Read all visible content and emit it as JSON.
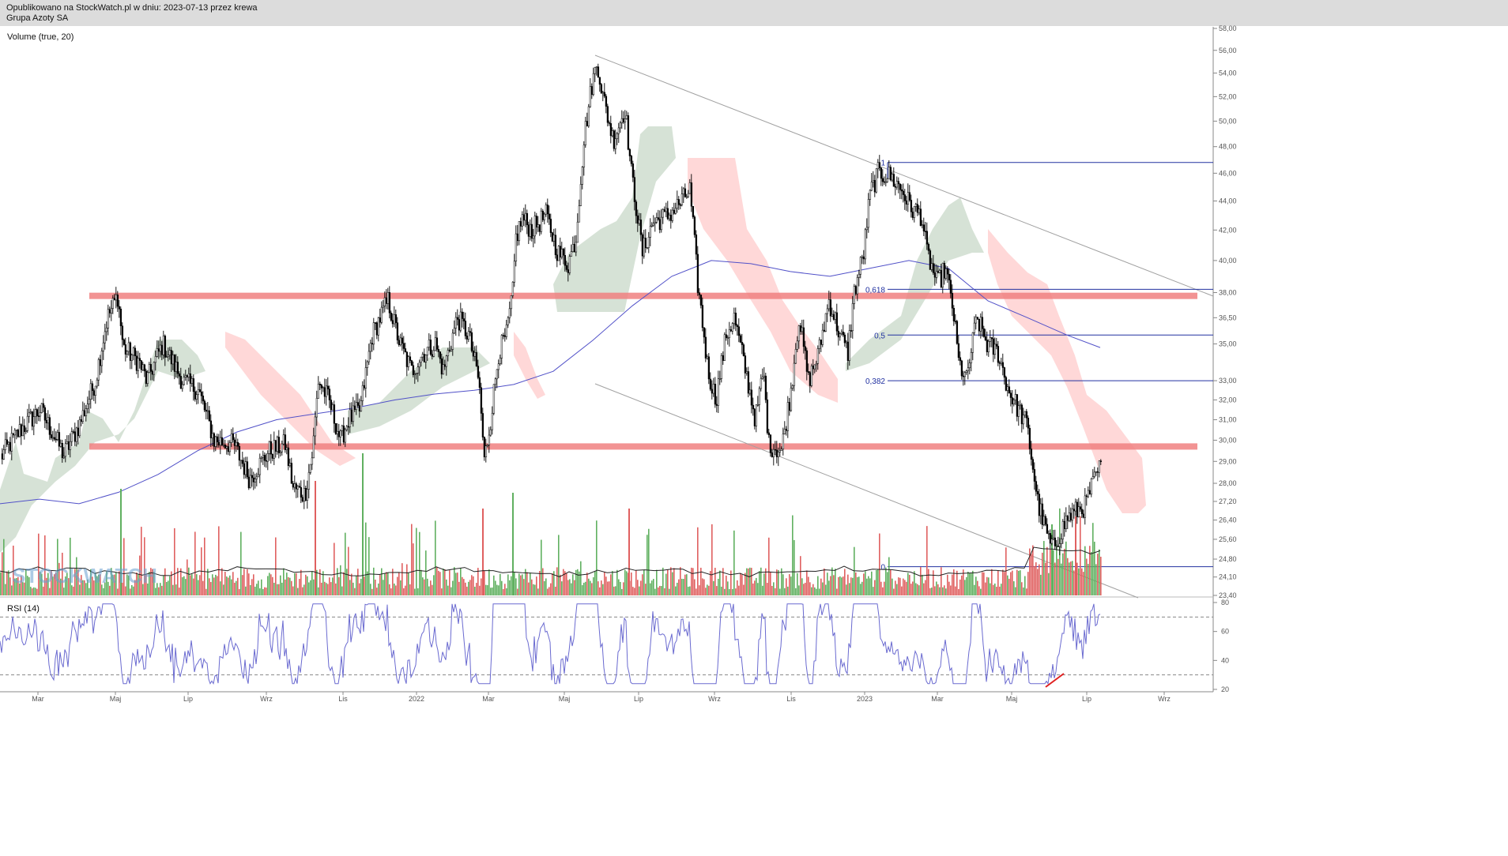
{
  "header": {
    "published": "Opublikowano na StockWatch.pl w dniu: 2023-07-13 przez krewa",
    "instrument": "Grupa Azoty SA"
  },
  "volume_label": "Volume (true, 20)",
  "rsi_label": "RSI (14)",
  "watermark": "STOCKWATCH",
  "colors": {
    "candle": "#000000",
    "sma": "#5050c8",
    "cloud_bull": "#c8d8c8",
    "cloud_bear": "#ffc8c8",
    "support_band": "#f08080",
    "fib_line": "#2030a0",
    "trend_line": "#a0a0a0",
    "vol_up": "#60b060",
    "vol_down": "#e06060",
    "rsi": "#6a6ad0",
    "divergence": "#e02020"
  },
  "chart_data": [
    {
      "type": "candlestick",
      "title": "",
      "subtitle": "",
      "x_ticks": [
        "Mar",
        "Maj",
        "Lip",
        "Wrz",
        "Lis",
        "2022",
        "Mar",
        "Maj",
        "Lip",
        "Wrz",
        "Lis",
        "2023",
        "Mar",
        "Maj",
        "Lip",
        "Wrz"
      ],
      "y_ticks": [
        "58,00",
        "56,00",
        "54,00",
        "52,00",
        "50,00",
        "48,00",
        "46,00",
        "44,00",
        "42,00",
        "40,00",
        "38,00",
        "36,50",
        "35,00",
        "33,00",
        "32,00",
        "31,00",
        "30,00",
        "29,00",
        "28,00",
        "27,20",
        "26,40",
        "25,60",
        "24,80",
        "24,10",
        "23,40"
      ],
      "y_scale": "log",
      "ylim": [
        23.4,
        58.0
      ],
      "price_path": [
        [
          0,
          29.2
        ],
        [
          25,
          30.5
        ],
        [
          50,
          31.5
        ],
        [
          80,
          29.3
        ],
        [
          100,
          30.8
        ],
        [
          120,
          33.0
        ],
        [
          135,
          36.5
        ],
        [
          148,
          37.8
        ],
        [
          155,
          34.8
        ],
        [
          175,
          34.0
        ],
        [
          185,
          33.0
        ],
        [
          205,
          35.0
        ],
        [
          230,
          33.0
        ],
        [
          250,
          32.5
        ],
        [
          270,
          30.0
        ],
        [
          295,
          29.8
        ],
        [
          315,
          28.2
        ],
        [
          340,
          29.5
        ],
        [
          360,
          29.8
        ],
        [
          370,
          27.8
        ],
        [
          385,
          27.5
        ],
        [
          395,
          29.5
        ],
        [
          402,
          33.0
        ],
        [
          415,
          32.0
        ],
        [
          430,
          30.0
        ],
        [
          440,
          31.0
        ],
        [
          455,
          31.5
        ],
        [
          470,
          35.5
        ],
        [
          490,
          37.5
        ],
        [
          505,
          35.0
        ],
        [
          520,
          33.5
        ],
        [
          535,
          34.5
        ],
        [
          550,
          35.0
        ],
        [
          560,
          33.5
        ],
        [
          578,
          36.5
        ],
        [
          592,
          35.5
        ],
        [
          605,
          33.0
        ],
        [
          612,
          29.0
        ],
        [
          620,
          31.0
        ],
        [
          630,
          34.5
        ],
        [
          640,
          35.5
        ],
        [
          648,
          38.0
        ],
        [
          652,
          41.5
        ],
        [
          660,
          42.8
        ],
        [
          672,
          42.0
        ],
        [
          690,
          43.0
        ],
        [
          705,
          40.5
        ],
        [
          718,
          39.8
        ],
        [
          728,
          41.5
        ],
        [
          738,
          48.5
        ],
        [
          748,
          53.0
        ],
        [
          755,
          55.0
        ],
        [
          762,
          52.0
        ],
        [
          775,
          48.5
        ],
        [
          790,
          51.0
        ],
        [
          798,
          46.0
        ],
        [
          812,
          40.5
        ],
        [
          825,
          42.5
        ],
        [
          845,
          43.0
        ],
        [
          862,
          44.0
        ],
        [
          872,
          44.8
        ],
        [
          882,
          38.5
        ],
        [
          895,
          33.5
        ],
        [
          905,
          32.0
        ],
        [
          918,
          35.5
        ],
        [
          928,
          36.5
        ],
        [
          945,
          33.0
        ],
        [
          955,
          31.0
        ],
        [
          965,
          33.5
        ],
        [
          972,
          29.8
        ],
        [
          988,
          29.5
        ],
        [
          1000,
          32.5
        ],
        [
          1010,
          36.5
        ],
        [
          1022,
          33.0
        ],
        [
          1035,
          34.5
        ],
        [
          1048,
          37.5
        ],
        [
          1062,
          35.5
        ],
        [
          1072,
          34.5
        ],
        [
          1080,
          38.0
        ],
        [
          1092,
          40.5
        ],
        [
          1100,
          44.5
        ],
        [
          1110,
          46.0
        ],
        [
          1125,
          45.8
        ],
        [
          1140,
          44.8
        ],
        [
          1152,
          43.5
        ],
        [
          1165,
          43.0
        ],
        [
          1172,
          40.5
        ],
        [
          1185,
          38.5
        ],
        [
          1195,
          39.5
        ],
        [
          1205,
          37.0
        ],
        [
          1212,
          34.0
        ],
        [
          1222,
          33.0
        ],
        [
          1235,
          36.5
        ],
        [
          1248,
          35.0
        ],
        [
          1262,
          34.5
        ],
        [
          1275,
          32.5
        ],
        [
          1288,
          31.5
        ],
        [
          1298,
          30.8
        ],
        [
          1305,
          29.0
        ],
        [
          1312,
          27.2
        ],
        [
          1320,
          26.2
        ],
        [
          1330,
          25.2
        ],
        [
          1340,
          25.8
        ],
        [
          1350,
          26.5
        ],
        [
          1362,
          26.8
        ],
        [
          1372,
          27.0
        ],
        [
          1380,
          27.8
        ],
        [
          1392,
          28.8
        ]
      ],
      "sma_path": [
        [
          0,
          27.1
        ],
        [
          50,
          27.3
        ],
        [
          100,
          27.1
        ],
        [
          150,
          27.6
        ],
        [
          200,
          28.4
        ],
        [
          250,
          29.5
        ],
        [
          300,
          30.4
        ],
        [
          350,
          31.0
        ],
        [
          400,
          31.3
        ],
        [
          450,
          31.6
        ],
        [
          500,
          32.0
        ],
        [
          550,
          32.3
        ],
        [
          600,
          32.5
        ],
        [
          650,
          32.8
        ],
        [
          700,
          33.5
        ],
        [
          750,
          35.2
        ],
        [
          800,
          37.2
        ],
        [
          850,
          39.0
        ],
        [
          900,
          40.0
        ],
        [
          950,
          39.8
        ],
        [
          1000,
          39.3
        ],
        [
          1050,
          39.0
        ],
        [
          1100,
          39.5
        ],
        [
          1150,
          40.0
        ],
        [
          1200,
          39.5
        ],
        [
          1250,
          37.5
        ],
        [
          1300,
          36.5
        ],
        [
          1350,
          35.5
        ],
        [
          1392,
          34.8
        ]
      ],
      "support_bands": [
        37.8,
        29.7
      ],
      "fibonacci": [
        {
          "label": "1",
          "price": 46.8
        },
        {
          "label": "0,618",
          "price": 38.2
        },
        {
          "label": "0,5",
          "price": 35.5
        },
        {
          "label": "0,382",
          "price": 33.0
        },
        {
          "label": "0",
          "price": 24.5
        }
      ]
    },
    {
      "type": "bar",
      "title": "Volume (true, 20)"
    },
    {
      "type": "line",
      "title": "RSI (14)",
      "y_ticks": [
        "80",
        "60",
        "40",
        "20"
      ],
      "ylim": [
        20,
        80
      ],
      "levels": [
        70,
        30
      ]
    }
  ]
}
